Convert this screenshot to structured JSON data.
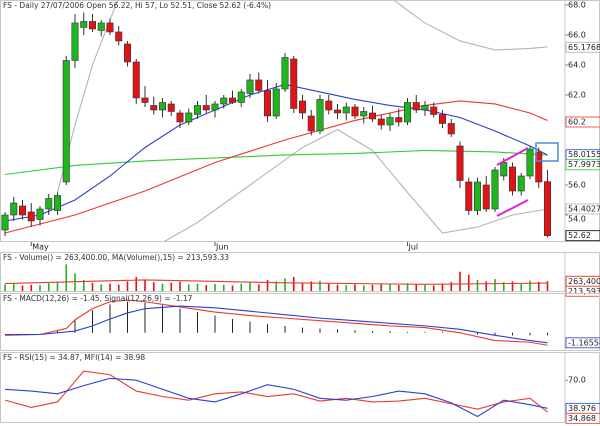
{
  "chart_data": [
    {
      "type": "candlestick",
      "title": "FS - Daily 27/07/2006 Open 56.22, Hi 57, Lo 52.51, Close 52.62 (-6.4%)",
      "categories": [
        null,
        null,
        null,
        "May",
        null,
        null,
        null,
        null,
        null,
        null,
        null,
        null,
        null,
        null,
        null,
        null,
        null,
        null,
        null,
        null,
        null,
        null,
        null,
        null,
        "Jun",
        null,
        null,
        null,
        null,
        null,
        null,
        null,
        null,
        null,
        null,
        null,
        null,
        null,
        null,
        null,
        null,
        null,
        null,
        null,
        null,
        null,
        "Jul",
        null,
        null,
        null,
        null,
        null,
        null,
        null,
        null,
        null,
        null,
        null,
        null,
        null,
        null,
        null,
        null
      ],
      "open": [
        53.0,
        54.0,
        54.6,
        54.2,
        53.7,
        54.4,
        54.3,
        56.2,
        64.3,
        66.5,
        66.9,
        66.3,
        66.8,
        66.2,
        65.4,
        64.2,
        61.8,
        61.3,
        61.0,
        61.4,
        60.8,
        60.2,
        60.7,
        61.3,
        61.0,
        61.4,
        61.8,
        61.5,
        62.1,
        63.0,
        62.3,
        60.6,
        62.4,
        64.4,
        61.6,
        60.6,
        59.6,
        61.6,
        61.0,
        60.8,
        61.2,
        60.6,
        60.8,
        60.4,
        60.0,
        60.5,
        60.2,
        61.5,
        61.0,
        61.2,
        60.7,
        60.1,
        58.6,
        56.2,
        54.3,
        56.0,
        54.4,
        56.6,
        57.2,
        55.6,
        56.6,
        58.2,
        56.22
      ],
      "high": [
        54.2,
        55.2,
        55.0,
        54.8,
        54.6,
        55.4,
        55.5,
        64.6,
        67.4,
        67.5,
        67.4,
        67.0,
        67.1,
        66.6,
        65.6,
        64.4,
        62.6,
        61.9,
        61.8,
        61.6,
        61.0,
        61.1,
        61.6,
        62.0,
        61.6,
        62.0,
        62.3,
        62.4,
        63.4,
        63.5,
        63.0,
        62.8,
        64.8,
        64.6,
        62.0,
        61.0,
        62.0,
        62.0,
        61.4,
        61.5,
        61.4,
        61.2,
        61.3,
        60.7,
        60.8,
        61.1,
        61.8,
        62.0,
        61.6,
        61.5,
        61.0,
        60.4,
        58.9,
        56.5,
        56.5,
        56.6,
        57.2,
        57.8,
        57.5,
        56.8,
        58.6,
        58.5,
        57
      ],
      "low": [
        52.6,
        53.6,
        53.7,
        53.2,
        53.3,
        54.0,
        54.0,
        56.0,
        63.8,
        66.0,
        66.2,
        65.9,
        66.0,
        65.3,
        63.9,
        61.4,
        61.2,
        60.7,
        60.5,
        60.6,
        59.8,
        60.0,
        60.4,
        60.8,
        60.5,
        61.1,
        61.4,
        61.2,
        61.8,
        62.1,
        60.2,
        60.4,
        62.2,
        60.8,
        60.4,
        59.3,
        59.4,
        60.7,
        60.4,
        60.3,
        60.4,
        60.1,
        60.2,
        59.7,
        59.6,
        59.9,
        60.0,
        60.8,
        60.6,
        60.5,
        59.8,
        59.2,
        55.8,
        54.0,
        54.0,
        54.2,
        54.2,
        56.3,
        55.3,
        55.3,
        56.4,
        55.8,
        52.51
      ],
      "close": [
        54.0,
        54.8,
        54.0,
        53.6,
        54.4,
        55.1,
        55.3,
        64.3,
        66.8,
        66.9,
        66.4,
        66.8,
        66.2,
        65.6,
        64.2,
        61.8,
        61.5,
        61.0,
        61.5,
        60.9,
        60.2,
        60.8,
        61.3,
        61.0,
        61.4,
        61.8,
        61.5,
        62.2,
        63.0,
        62.3,
        60.6,
        62.4,
        64.5,
        61.1,
        60.8,
        59.6,
        61.7,
        61.0,
        60.8,
        61.2,
        60.6,
        60.9,
        60.4,
        60.0,
        60.5,
        60.2,
        61.5,
        61.0,
        61.3,
        60.7,
        60.1,
        59.4,
        56.3,
        54.3,
        56.2,
        54.4,
        57.0,
        57.5,
        55.6,
        56.6,
        58.4,
        56.2,
        52.62
      ],
      "up_color": "#1fb51f",
      "down_color": "#e01414",
      "ylim": [
        52.2,
        68.33
      ],
      "yticks": [
        {
          "value": 68,
          "label": "68.0"
        },
        {
          "value": 66,
          "label": "66.0"
        },
        {
          "value": 64,
          "label": "64.0"
        },
        {
          "value": 62,
          "label": "62.0"
        },
        {
          "value": 56,
          "label": "56.0"
        },
        {
          "value": 54,
          "label": "54.0"
        }
      ],
      "overlays": [
        {
          "color": "#b4b4b4",
          "x": [
            6,
            8,
            10,
            12,
            13,
            44,
            48,
            52,
            56,
            60,
            62
          ],
          "values": [
            55.5,
            60,
            64,
            67,
            68.5,
            68.5,
            66.8,
            65.6,
            65.0,
            65.1,
            65.2
          ],
          "end_value": 65.1768
        },
        {
          "color": "#b4b4b4",
          "x": [
            12,
            16,
            22,
            28,
            34,
            38,
            42,
            46,
            50,
            54,
            58,
            62
          ],
          "values": [
            50,
            51.5,
            53.5,
            56,
            58.5,
            59.7,
            58.3,
            55.5,
            52.8,
            53.2,
            54.0,
            54.4
          ],
          "end_value": 54.4027
        },
        {
          "color": "#33cc33",
          "x": [
            0,
            8,
            16,
            24,
            32,
            40,
            48,
            56,
            62
          ],
          "values": [
            56.7,
            57.3,
            57.6,
            57.8,
            58.0,
            58.1,
            58.3,
            58.2,
            58.0
          ],
          "end_value": 57.9973
        },
        {
          "color": "#e83a2e",
          "x": [
            0,
            8,
            16,
            24,
            32,
            40,
            48,
            52,
            56,
            60,
            62
          ],
          "values": [
            52.8,
            54.0,
            55.6,
            57.5,
            59.0,
            60.3,
            61.3,
            61.6,
            61.4,
            60.8,
            60.3
          ],
          "end_value": 60.2
        },
        {
          "color": "#2a3fd6",
          "x": [
            0,
            4,
            8,
            12,
            16,
            20,
            24,
            28,
            32,
            36,
            40,
            44,
            48,
            52,
            56,
            60,
            62
          ],
          "values": [
            53.6,
            54.0,
            55.0,
            56.6,
            58.5,
            60.0,
            61.0,
            62.0,
            62.7,
            62.2,
            61.7,
            61.3,
            61.0,
            60.5,
            59.6,
            58.6,
            58.0
          ],
          "end_value": 58.0155
        }
      ]
    },
    {
      "type": "bar",
      "title": "FS - Volume() = 263,400.00, MA(Volume(),15) = 213,593.33",
      "values": [
        180000,
        220000,
        150000,
        170000,
        160000,
        210000,
        260000,
        720000,
        480000,
        300000,
        220000,
        180000,
        200000,
        170000,
        260000,
        380000,
        300000,
        240000,
        200000,
        220000,
        250000,
        180000,
        200000,
        160000,
        190000,
        170000,
        150000,
        200000,
        240000,
        180000,
        300000,
        260000,
        340000,
        380000,
        230000,
        260000,
        280000,
        190000,
        170000,
        160000,
        180000,
        150000,
        170000,
        200000,
        180000,
        160000,
        210000,
        190000,
        170000,
        150000,
        200000,
        240000,
        520000,
        440000,
        300000,
        260000,
        320000,
        240000,
        260000,
        200000,
        280000,
        250000,
        263400
      ],
      "last_label": {
        "value": 263400,
        "label": "263,400"
      },
      "up_color": "#1fb51f",
      "down_color": "#e01414",
      "ylim": [
        0,
        1000000
      ],
      "overlays": [
        {
          "color": "#e83a2e",
          "x": [
            0,
            16,
            32,
            48,
            62
          ],
          "values": [
            200000,
            300000,
            220000,
            180000,
            213593.33
          ],
          "end_label": {
            "value": 213593.33,
            "label": "213,593"
          }
        }
      ]
    },
    {
      "type": "line",
      "title": "FS - MACD(12,26) = -1.45, Signal(12,26,9) = -1.17",
      "ylim": [
        -2,
        4.5
      ],
      "histogram": {
        "color": "#222222",
        "x": [
          6,
          8,
          10,
          12,
          14,
          16,
          18,
          20,
          22,
          24,
          26,
          28,
          30,
          32,
          34,
          36,
          38,
          40,
          42,
          44,
          46,
          48,
          50,
          52,
          54,
          56,
          58,
          60,
          62
        ],
        "values": [
          0.3,
          1.5,
          2.6,
          3.3,
          3.6,
          3.5,
          3.2,
          2.8,
          2.4,
          2.0,
          1.6,
          1.3,
          1.0,
          0.8,
          0.6,
          0.5,
          0.4,
          0.3,
          0.2,
          0.2,
          0.1,
          0.1,
          0.1,
          -0.1,
          -0.2,
          -0.3,
          -0.3,
          -0.3,
          -0.3
        ]
      },
      "overlays": [
        {
          "color": "#e83a2e",
          "x": [
            0,
            4,
            7,
            8,
            10,
            12,
            14,
            16,
            20,
            24,
            28,
            32,
            36,
            40,
            44,
            48,
            52,
            56,
            60,
            62
          ],
          "values": [
            -0.3,
            -0.2,
            0.5,
            1.5,
            2.8,
            3.6,
            3.8,
            3.6,
            3.0,
            2.4,
            2.0,
            1.7,
            1.4,
            1.1,
            0.8,
            0.6,
            0.0,
            -0.9,
            -1.1,
            -1.45
          ]
        },
        {
          "color": "#2a3fd6",
          "x": [
            0,
            4,
            8,
            10,
            12,
            14,
            16,
            20,
            24,
            28,
            32,
            36,
            40,
            44,
            48,
            52,
            56,
            60,
            62
          ],
          "values": [
            -0.2,
            -0.2,
            0.2,
            0.8,
            1.6,
            2.3,
            2.8,
            3.1,
            2.9,
            2.5,
            2.1,
            1.7,
            1.4,
            1.1,
            0.8,
            0.4,
            -0.3,
            -0.9,
            -1.17
          ],
          "end_value": -1.16554
        }
      ]
    },
    {
      "type": "line",
      "title": "FS - RSI(15) = 34.87, MFI(14) = 38.98",
      "ylim": [
        25,
        100
      ],
      "yticks": [
        {
          "value": 70,
          "label": "70.0"
        }
      ],
      "overlays": [
        {
          "color": "#e83a2e",
          "x": [
            0,
            3,
            6,
            9,
            12,
            15,
            18,
            21,
            24,
            27,
            30,
            33,
            36,
            39,
            42,
            45,
            48,
            51,
            54,
            57,
            60,
            62
          ],
          "values": [
            48,
            40,
            46,
            80,
            76,
            58,
            52,
            48,
            55,
            57,
            52,
            55,
            47,
            50,
            46,
            47,
            50,
            44,
            38,
            46,
            50,
            34.87
          ],
          "end_value": 34.868
        },
        {
          "color": "#2a3fd6",
          "x": [
            0,
            3,
            6,
            9,
            12,
            15,
            18,
            21,
            24,
            27,
            30,
            33,
            36,
            39,
            42,
            45,
            48,
            51,
            54,
            57,
            60,
            62
          ],
          "values": [
            60,
            58,
            55,
            64,
            72,
            70,
            60,
            50,
            46,
            55,
            65,
            60,
            50,
            48,
            52,
            58,
            55,
            45,
            30,
            48,
            43,
            38.98
          ],
          "end_value": 38.976
        }
      ]
    }
  ]
}
